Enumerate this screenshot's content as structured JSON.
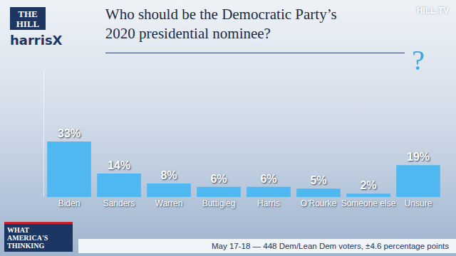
{
  "chart_data": {
    "type": "bar",
    "title": "Who should be the Democratic Party’s\n2020 presidential nominee?",
    "categories": [
      "Biden",
      "Sanders",
      "Warren",
      "Buttigieg",
      "Harris",
      "O'Rourke",
      "Someone else",
      "Unsure"
    ],
    "values": [
      33,
      14,
      8,
      6,
      6,
      5,
      2,
      19
    ],
    "value_labels": [
      "33%",
      "14%",
      "8%",
      "6%",
      "6%",
      "5%",
      "2%",
      "19%"
    ],
    "color": "#4fb8f0",
    "ylim": [
      0,
      75
    ],
    "grid": false,
    "data_labels": true,
    "tick_labels": "x",
    "annotations": [
      {
        "text": "THE HILL"
      },
      {
        "text": "harrisX"
      },
      {
        "text": "HILL.TV"
      },
      {
        "text": "WHAT AMERICA'S THINKING"
      },
      {
        "text": "May 17-18 — 448 Dem/Lean Dem voters, ±4.6 percentage points"
      },
      {
        "text": "?",
        "category": "Unsure"
      }
    ]
  }
}
